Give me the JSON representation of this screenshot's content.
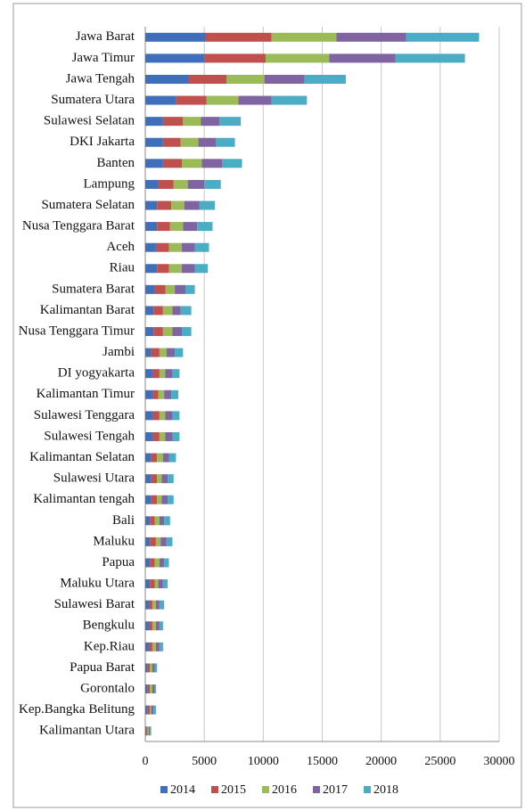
{
  "chart_data": {
    "type": "stacked_bar_horizontal",
    "categories": [
      "Jawa Barat",
      "Jawa Timur",
      "Jawa Tengah",
      "Sumatera Utara",
      "Sulawesi Selatan",
      "DKI Jakarta",
      "Banten",
      "Lampung",
      "Sumatera Selatan",
      "Nusa Tenggara Barat",
      "Aceh",
      "Riau",
      "Sumatera Barat",
      "Kalimantan Barat",
      "Nusa Tenggara Timur",
      "Jambi",
      "DI yogyakarta",
      "Kalimantan Timur",
      "Sulawesi Tenggara",
      "Sulawesi Tengah",
      "Kalimantan Selatan",
      "Sulawesi Utara",
      "Kalimantan tengah",
      "Bali",
      "Maluku",
      "Papua",
      "Maluku Utara",
      "Sulawesi Barat",
      "Bengkulu",
      "Kep.Riau",
      "Papua Barat",
      "Gorontalo",
      "Kep.Bangka Belitung",
      "Kalimantan Utara"
    ],
    "series": [
      {
        "name": "2014",
        "color": "#3f6fba",
        "values": [
          5100,
          5000,
          3700,
          2600,
          1500,
          1500,
          1500,
          1100,
          1000,
          1000,
          900,
          1000,
          800,
          700,
          700,
          500,
          600,
          600,
          600,
          600,
          500,
          500,
          500,
          400,
          400,
          400,
          400,
          300,
          300,
          300,
          200,
          200,
          200,
          100
        ]
      },
      {
        "name": "2015",
        "color": "#c0504d",
        "values": [
          5600,
          5200,
          3200,
          2600,
          1700,
          1500,
          1600,
          1300,
          1200,
          1100,
          1100,
          1000,
          900,
          800,
          800,
          700,
          600,
          500,
          600,
          600,
          500,
          500,
          500,
          400,
          500,
          400,
          400,
          300,
          300,
          300,
          200,
          200,
          200,
          100
        ]
      },
      {
        "name": "2016",
        "color": "#9bbb59",
        "values": [
          5500,
          5400,
          3200,
          2700,
          1500,
          1500,
          1700,
          1200,
          1100,
          1100,
          1100,
          1100,
          800,
          800,
          800,
          600,
          500,
          500,
          500,
          500,
          500,
          400,
          400,
          400,
          400,
          400,
          300,
          300,
          300,
          300,
          200,
          200,
          100,
          100
        ]
      },
      {
        "name": "2017",
        "color": "#8064a2",
        "values": [
          5900,
          5600,
          3400,
          2800,
          1600,
          1500,
          1700,
          1400,
          1300,
          1200,
          1100,
          1100,
          900,
          700,
          800,
          700,
          600,
          600,
          600,
          600,
          500,
          500,
          500,
          400,
          500,
          400,
          400,
          300,
          300,
          300,
          200,
          200,
          200,
          100
        ]
      },
      {
        "name": "2018",
        "color": "#4bacc6",
        "values": [
          6200,
          5900,
          3500,
          3000,
          1800,
          1600,
          1700,
          1400,
          1300,
          1300,
          1200,
          1100,
          800,
          900,
          800,
          700,
          600,
          600,
          600,
          600,
          600,
          500,
          500,
          500,
          500,
          400,
          400,
          400,
          300,
          300,
          200,
          100,
          200,
          100
        ]
      }
    ],
    "xlim": [
      0,
      30000
    ],
    "xticks": [
      0,
      5000,
      10000,
      15000,
      20000,
      25000,
      30000
    ],
    "grid": true,
    "legend": "bottom"
  }
}
